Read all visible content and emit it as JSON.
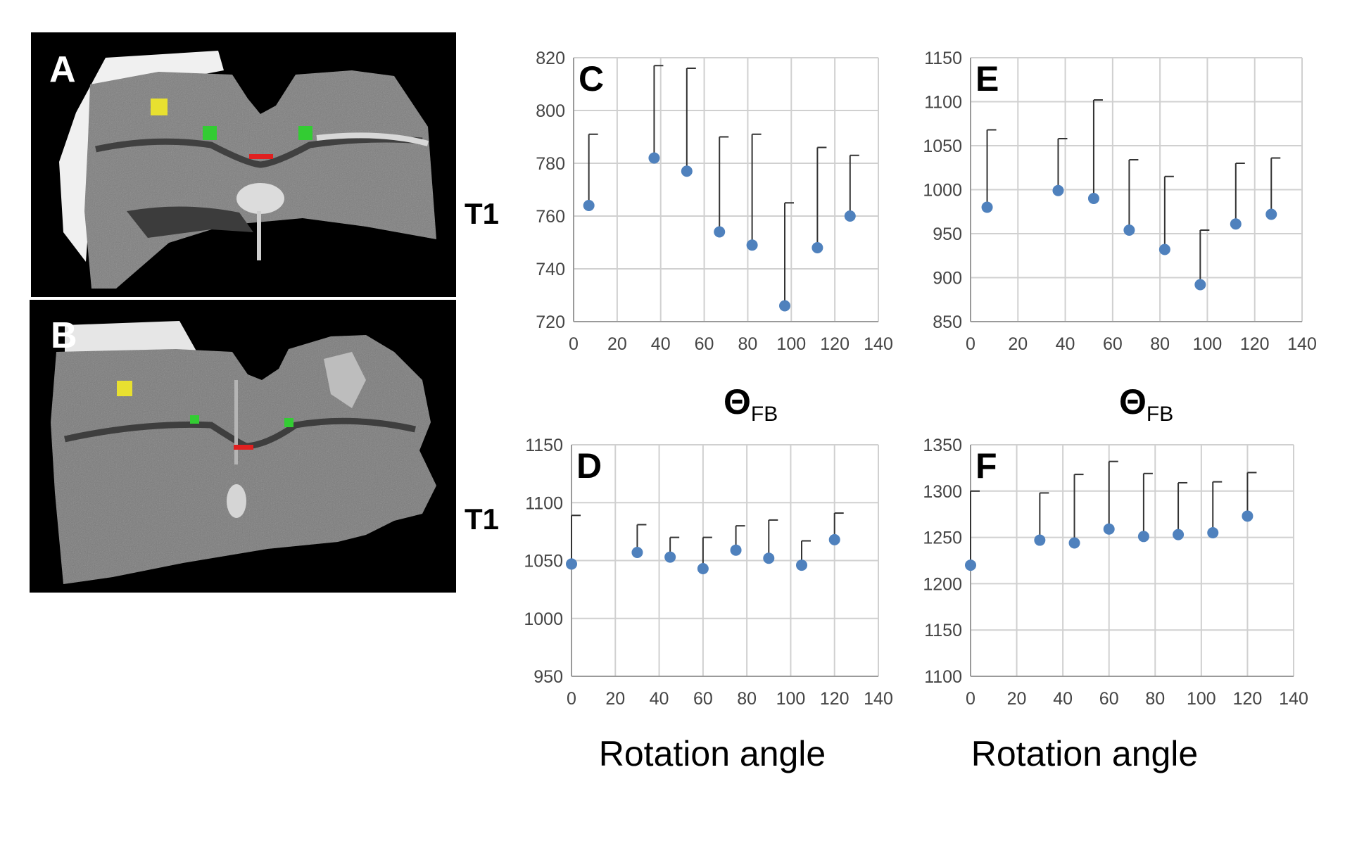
{
  "figure": {
    "y_axis_label": "T1",
    "theta_main": "Θ",
    "theta_sub": "FB",
    "rotation_label": "Rotation angle",
    "accent_color": "#4f81bd",
    "mri_panels": [
      {
        "letter": "A"
      },
      {
        "letter": "B"
      }
    ]
  },
  "chart_data": [
    {
      "panel": "C",
      "type": "scatter",
      "x": [
        7,
        37,
        52,
        67,
        82,
        97,
        112,
        127
      ],
      "y": [
        764,
        782,
        777,
        754,
        749,
        726,
        748,
        760
      ],
      "err_upper": [
        27,
        35,
        39,
        36,
        42,
        39,
        38,
        23
      ],
      "xlim": [
        0,
        140
      ],
      "xticks": [
        "0",
        "20",
        "40",
        "60",
        "80",
        "100",
        "120",
        "140"
      ],
      "ylim": [
        720,
        820
      ],
      "yticks": [
        "720",
        "740",
        "760",
        "780",
        "800",
        "820"
      ]
    },
    {
      "panel": "E",
      "type": "scatter",
      "x": [
        7,
        37,
        52,
        67,
        82,
        97,
        112,
        127
      ],
      "y": [
        980,
        999,
        990,
        954,
        932,
        892,
        961,
        972
      ],
      "err_upper": [
        88,
        59,
        112,
        80,
        83,
        62,
        69,
        64
      ],
      "xlim": [
        0,
        140
      ],
      "xticks": [
        "0",
        "20",
        "40",
        "60",
        "80",
        "100",
        "120",
        "140"
      ],
      "ylim": [
        850,
        1150
      ],
      "yticks": [
        "850",
        "900",
        "950",
        "1000",
        "1050",
        "1100",
        "1150"
      ]
    },
    {
      "panel": "D",
      "type": "scatter",
      "x": [
        0,
        30,
        45,
        60,
        75,
        90,
        105,
        120
      ],
      "y": [
        1047,
        1057,
        1053,
        1043,
        1059,
        1052,
        1046,
        1068
      ],
      "err_upper": [
        42,
        24,
        17,
        27,
        21,
        33,
        21,
        23
      ],
      "xlim": [
        0,
        140
      ],
      "xticks": [
        "0",
        "20",
        "40",
        "60",
        "80",
        "100",
        "120",
        "140"
      ],
      "ylim": [
        950,
        1150
      ],
      "yticks": [
        "950",
        "1000",
        "1050",
        "1100",
        "1150"
      ]
    },
    {
      "panel": "F",
      "type": "scatter",
      "x": [
        0,
        30,
        45,
        60,
        75,
        90,
        105,
        120
      ],
      "y": [
        1220,
        1247,
        1244,
        1259,
        1251,
        1253,
        1255,
        1273
      ],
      "err_upper": [
        80,
        51,
        74,
        73,
        68,
        56,
        55,
        47
      ],
      "xlim": [
        0,
        140
      ],
      "xticks": [
        "0",
        "20",
        "40",
        "60",
        "80",
        "100",
        "120",
        "140"
      ],
      "ylim": [
        1100,
        1350
      ],
      "yticks": [
        "1100",
        "1150",
        "1200",
        "1250",
        "1300",
        "1350"
      ]
    }
  ]
}
